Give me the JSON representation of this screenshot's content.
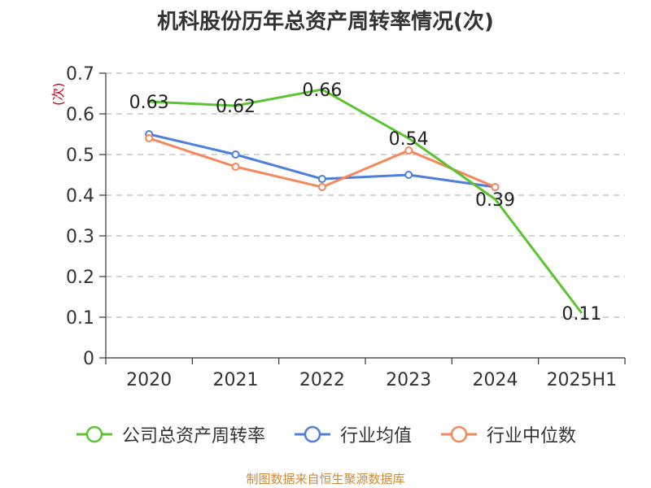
{
  "chart_data": {
    "type": "line",
    "title": "机科股份历年总资产周转率情况(次)",
    "ylabel": "(次)",
    "xlabel": "",
    "categories": [
      "2020",
      "2021",
      "2022",
      "2023",
      "2024",
      "2025H1"
    ],
    "ylim": [
      0,
      0.7
    ],
    "yticks": [
      "0",
      "0.1",
      "0.2",
      "0.3",
      "0.4",
      "0.5",
      "0.6",
      "0.7"
    ],
    "grid": true,
    "legend_position": "bottom",
    "series": [
      {
        "name": "公司总资产周转率",
        "color": "#5cc433",
        "values": [
          0.63,
          0.62,
          0.66,
          0.54,
          0.39,
          0.11
        ],
        "labels": [
          "0.63",
          "0.62",
          "0.66",
          "0.54",
          "0.39",
          "0.11"
        ]
      },
      {
        "name": "行业均值",
        "color": "#4f7fdc",
        "values": [
          0.55,
          0.5,
          0.44,
          0.45,
          0.42,
          null
        ]
      },
      {
        "name": "行业中位数",
        "color": "#f4875c",
        "values": [
          0.54,
          0.47,
          0.42,
          0.51,
          0.42,
          null
        ]
      }
    ]
  },
  "source": "制图数据来自恒生聚源数据库"
}
